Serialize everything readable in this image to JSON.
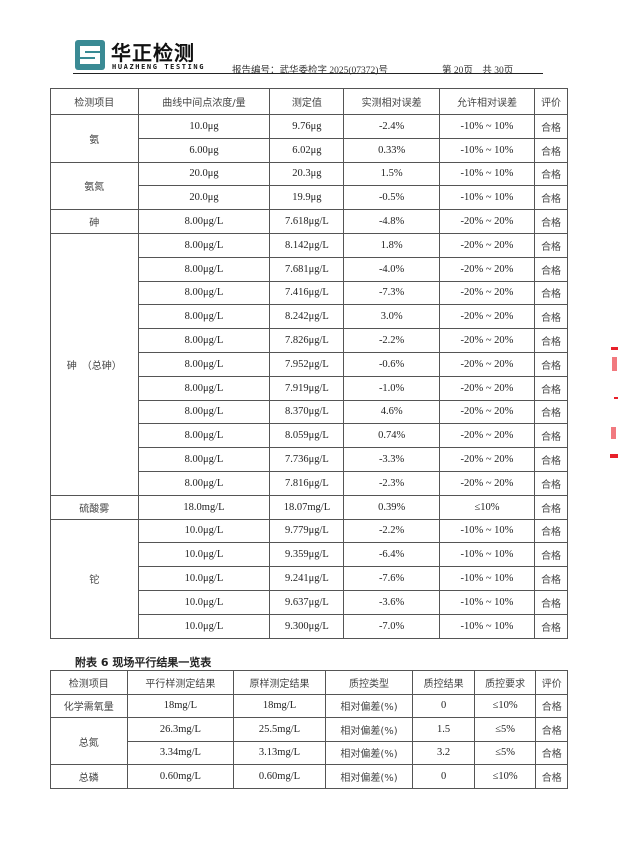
{
  "header": {
    "brand_cn": "华正检测",
    "brand_en": "HUAZHENG TESTING",
    "report_no": "报告编号：武华委检字 2025(07372)号",
    "page_info": "第 20页　共 30页",
    "logo_color": "#3a8a94"
  },
  "table1": {
    "headers": [
      "检测项目",
      "曲线中间点浓度/量",
      "测定值",
      "实测相对误差",
      "允许相对误差",
      "评价"
    ],
    "groups": [
      {
        "item": "氨",
        "rows": [
          [
            "10.0μg",
            "9.76μg",
            "-2.4%",
            "-10% ~ 10%",
            "合格"
          ],
          [
            "6.00μg",
            "6.02μg",
            "0.33%",
            "-10% ~ 10%",
            "合格"
          ]
        ]
      },
      {
        "item": "氨氮",
        "rows": [
          [
            "20.0μg",
            "20.3μg",
            "1.5%",
            "-10% ~ 10%",
            "合格"
          ],
          [
            "20.0μg",
            "19.9μg",
            "-0.5%",
            "-10% ~ 10%",
            "合格"
          ]
        ]
      },
      {
        "item": "砷",
        "rows": [
          [
            "8.00μg/L",
            "7.618μg/L",
            "-4.8%",
            "-20% ~ 20%",
            "合格"
          ]
        ]
      },
      {
        "item": "砷　（总砷）",
        "rows": [
          [
            "8.00μg/L",
            "8.142μg/L",
            "1.8%",
            "-20% ~ 20%",
            "合格"
          ],
          [
            "8.00μg/L",
            "7.681μg/L",
            "-4.0%",
            "-20% ~ 20%",
            "合格"
          ],
          [
            "8.00μg/L",
            "7.416μg/L",
            "-7.3%",
            "-20% ~ 20%",
            "合格"
          ],
          [
            "8.00μg/L",
            "8.242μg/L",
            "3.0%",
            "-20% ~ 20%",
            "合格"
          ],
          [
            "8.00μg/L",
            "7.826μg/L",
            "-2.2%",
            "-20% ~ 20%",
            "合格"
          ],
          [
            "8.00μg/L",
            "7.952μg/L",
            "-0.6%",
            "-20% ~ 20%",
            "合格"
          ],
          [
            "8.00μg/L",
            "7.919μg/L",
            "-1.0%",
            "-20% ~ 20%",
            "合格"
          ],
          [
            "8.00μg/L",
            "8.370μg/L",
            "4.6%",
            "-20% ~ 20%",
            "合格"
          ],
          [
            "8.00μg/L",
            "8.059μg/L",
            "0.74%",
            "-20% ~ 20%",
            "合格"
          ],
          [
            "8.00μg/L",
            "7.736μg/L",
            "-3.3%",
            "-20% ~ 20%",
            "合格"
          ],
          [
            "8.00μg/L",
            "7.816μg/L",
            "-2.3%",
            "-20% ~ 20%",
            "合格"
          ]
        ]
      },
      {
        "item": "硫酸雾",
        "rows": [
          [
            "18.0mg/L",
            "18.07mg/L",
            "0.39%",
            "≤10%",
            "合格"
          ]
        ]
      },
      {
        "item": "铊",
        "rows": [
          [
            "10.0μg/L",
            "9.779μg/L",
            "-2.2%",
            "-10% ~ 10%",
            "合格"
          ],
          [
            "10.0μg/L",
            "9.359μg/L",
            "-6.4%",
            "-10% ~ 10%",
            "合格"
          ],
          [
            "10.0μg/L",
            "9.241μg/L",
            "-7.6%",
            "-10% ~ 10%",
            "合格"
          ],
          [
            "10.0μg/L",
            "9.637μg/L",
            "-3.6%",
            "-10% ~ 10%",
            "合格"
          ],
          [
            "10.0μg/L",
            "9.300μg/L",
            "-7.0%",
            "-10% ~ 10%",
            "合格"
          ]
        ]
      }
    ]
  },
  "table2": {
    "title": "附表 6  现场平行结果一览表",
    "headers": [
      "检测项目",
      "平行样测定结果",
      "原样测定结果",
      "质控类型",
      "质控结果",
      "质控要求",
      "评价"
    ],
    "groups": [
      {
        "item": "化学需氧量",
        "rows": [
          [
            "18mg/L",
            "18mg/L",
            "相对偏差(%)",
            "0",
            "≤10%",
            "合格"
          ]
        ]
      },
      {
        "item": "总氮",
        "rows": [
          [
            "26.3mg/L",
            "25.5mg/L",
            "相对偏差(%)",
            "1.5",
            "≤5%",
            "合格"
          ],
          [
            "3.34mg/L",
            "3.13mg/L",
            "相对偏差(%)",
            "3.2",
            "≤5%",
            "合格"
          ]
        ]
      },
      {
        "item": "总磷",
        "rows": [
          [
            "0.60mg/L",
            "0.60mg/L",
            "相对偏差(%)",
            "0",
            "≤10%",
            "合格"
          ]
        ]
      }
    ]
  },
  "stamp_color": "#e8202a"
}
